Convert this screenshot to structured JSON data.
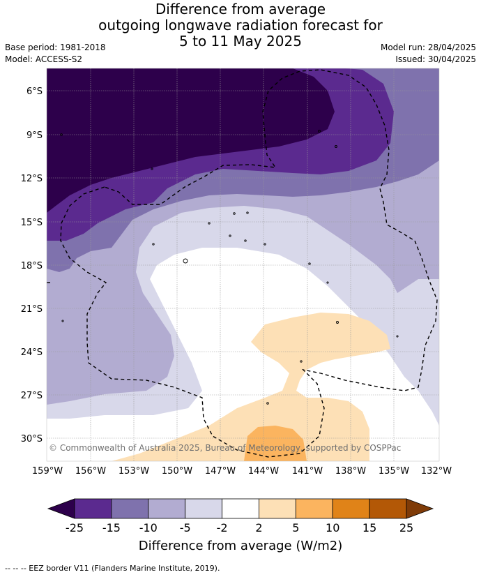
{
  "title": {
    "line1": "Difference from average",
    "line2": "outgoing longwave radiation forecast for",
    "line3": "5 to 11 May 2025"
  },
  "meta": {
    "base_period": "Base period: 1981-2018",
    "model": "Model: ACCESS-S2",
    "model_run": "Model run: 28/04/2025",
    "issued": "Issued: 30/04/2025"
  },
  "map": {
    "lat_labels": [
      "6°S",
      "9°S",
      "12°S",
      "15°S",
      "18°S",
      "21°S",
      "24°S",
      "27°S",
      "30°S"
    ],
    "lon_labels": [
      "159°W",
      "156°W",
      "153°W",
      "150°W",
      "147°W",
      "144°W",
      "141°W",
      "138°W",
      "135°W",
      "132°W"
    ],
    "copyright": "© Commonwealth of Australia 2025, Bureau of Meteorology, supported by COSPPac",
    "gridlines": true
  },
  "colorbar": {
    "ticks": [
      "-25",
      "-15",
      "-10",
      "-5",
      "-2",
      "2",
      "5",
      "10",
      "15",
      "25"
    ],
    "colors": [
      "#5b2a8f",
      "#7f72ad",
      "#b2acd1",
      "#d8d8ea",
      "#ffffff",
      "#fde0b6",
      "#fbb45f",
      "#e08318",
      "#b35806"
    ],
    "under_color": "#2d004b",
    "over_color": "#7f3b08",
    "label": "Difference from average (W/m2)"
  },
  "footer": {
    "legend": "--  --  -- EEZ border V11 (Flanders Marine Institute, 2019)."
  }
}
